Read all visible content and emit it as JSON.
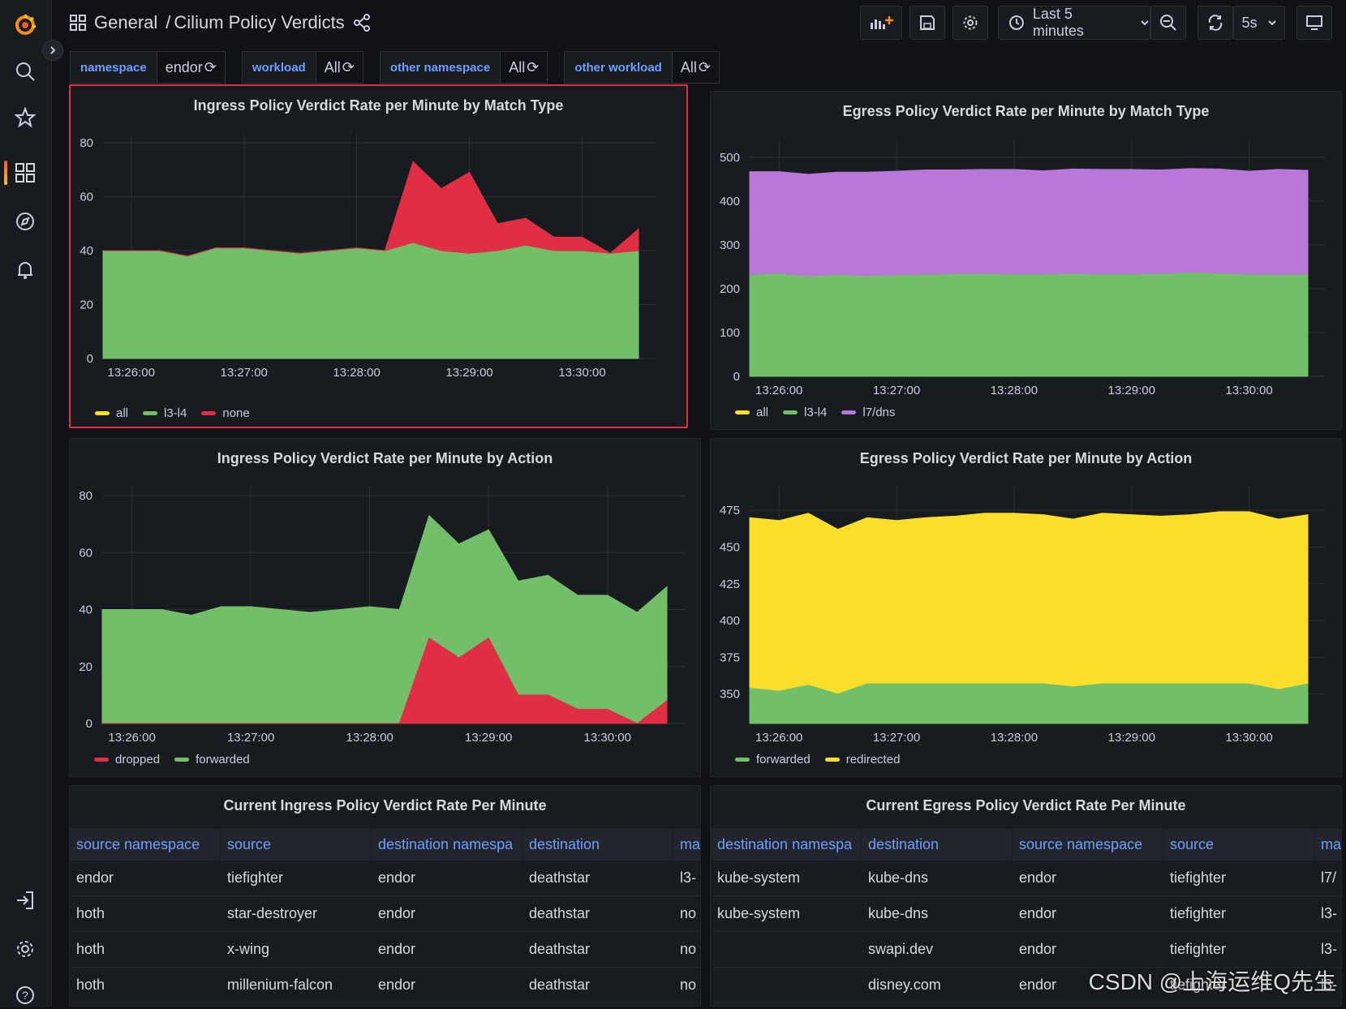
{
  "breadcrumb": {
    "folder": "General",
    "separator": "/",
    "dashboard": "Cilium Policy Verdicts"
  },
  "toolbar": {
    "time_range": "Last 5 minutes",
    "refresh_interval": "5s"
  },
  "variables": [
    {
      "label": "namespace",
      "value": "endor"
    },
    {
      "label": "workload",
      "value": "All"
    },
    {
      "label": "other namespace",
      "value": "All"
    },
    {
      "label": "other workload",
      "value": "All"
    }
  ],
  "colors": {
    "green": "#73bf69",
    "red": "#e02f44",
    "yellow": "#fade2a",
    "purple": "#b877d9",
    "accent": "#6e9fff"
  },
  "panels": {
    "ingress_match": {
      "title": "Ingress Policy Verdict Rate per Minute by Match Type"
    },
    "egress_match": {
      "title": "Egress Policy Verdict Rate per Minute by Match Type"
    },
    "ingress_action": {
      "title": "Ingress Policy Verdict Rate per Minute by Action"
    },
    "egress_action": {
      "title": "Egress Policy Verdict Rate per Minute by Action"
    },
    "ingress_table": {
      "title": "Current Ingress Policy Verdict Rate Per Minute"
    },
    "egress_table": {
      "title": "Current Egress Policy Verdict Rate Per Minute"
    }
  },
  "chart_data": [
    {
      "id": "ingress_match",
      "type": "area",
      "stacked": true,
      "title": "Ingress Policy Verdict Rate per Minute by Match Type",
      "x": [
        "13:25:45",
        "13:26:00",
        "13:26:15",
        "13:26:30",
        "13:26:45",
        "13:27:00",
        "13:27:15",
        "13:27:30",
        "13:27:45",
        "13:28:00",
        "13:28:15",
        "13:28:30",
        "13:28:45",
        "13:29:00",
        "13:29:15",
        "13:29:30",
        "13:29:45",
        "13:30:00",
        "13:30:15",
        "13:30:30"
      ],
      "xticks": [
        "13:26:00",
        "13:27:00",
        "13:28:00",
        "13:29:00",
        "13:30:00"
      ],
      "yticks": [
        0,
        20,
        40,
        60,
        80
      ],
      "ylim": [
        0,
        80
      ],
      "series": [
        {
          "name": "all",
          "color": "#fade2a",
          "values": [
            0,
            0,
            0,
            0,
            0,
            0,
            0,
            0,
            0,
            0,
            0,
            0,
            0,
            0,
            0,
            0,
            0,
            0,
            0,
            0
          ]
        },
        {
          "name": "l3-l4",
          "color": "#73bf69",
          "values": [
            40,
            40,
            40,
            38,
            41,
            41,
            40,
            39,
            40,
            41,
            40,
            43,
            40,
            39,
            40,
            42,
            40,
            40,
            39,
            40
          ]
        },
        {
          "name": "none",
          "color": "#e02f44",
          "values": [
            0,
            0,
            0,
            0,
            0,
            0,
            0,
            0,
            0,
            0,
            0,
            30,
            23,
            30,
            10,
            10,
            5,
            5,
            0,
            8
          ]
        }
      ],
      "legend": [
        "all",
        "l3-l4",
        "none"
      ]
    },
    {
      "id": "egress_match",
      "type": "area",
      "stacked": true,
      "title": "Egress Policy Verdict Rate per Minute by Match Type",
      "x": [
        "13:25:45",
        "13:26:00",
        "13:26:15",
        "13:26:30",
        "13:26:45",
        "13:27:00",
        "13:27:15",
        "13:27:30",
        "13:27:45",
        "13:28:00",
        "13:28:15",
        "13:28:30",
        "13:28:45",
        "13:29:00",
        "13:29:15",
        "13:29:30",
        "13:29:45",
        "13:30:00",
        "13:30:15",
        "13:30:30"
      ],
      "xticks": [
        "13:26:00",
        "13:27:00",
        "13:28:00",
        "13:29:00",
        "13:30:00"
      ],
      "yticks": [
        0,
        100,
        200,
        300,
        400,
        500
      ],
      "ylim": [
        0,
        520
      ],
      "series": [
        {
          "name": "all",
          "color": "#fade2a",
          "values": [
            0,
            0,
            0,
            0,
            0,
            0,
            0,
            0,
            0,
            0,
            0,
            0,
            0,
            0,
            0,
            0,
            0,
            0,
            0,
            0
          ]
        },
        {
          "name": "l3-l4",
          "color": "#73bf69",
          "values": [
            233,
            236,
            229,
            233,
            230,
            232,
            233,
            235,
            235,
            234,
            234,
            235,
            234,
            234,
            235,
            238,
            236,
            234,
            233,
            234
          ]
        },
        {
          "name": "l7/dns",
          "color": "#b877d9",
          "values": [
            234,
            231,
            232,
            233,
            236,
            236,
            238,
            236,
            237,
            238,
            235,
            238,
            238,
            238,
            236,
            236,
            237,
            234,
            239,
            236
          ]
        }
      ],
      "legend": [
        "all",
        "l3-l4",
        "l7/dns"
      ]
    },
    {
      "id": "ingress_action",
      "type": "area",
      "stacked": false,
      "title": "Ingress Policy Verdict Rate per Minute by Action",
      "x": [
        "13:25:45",
        "13:26:00",
        "13:26:15",
        "13:26:30",
        "13:26:45",
        "13:27:00",
        "13:27:15",
        "13:27:30",
        "13:27:45",
        "13:28:00",
        "13:28:15",
        "13:28:30",
        "13:28:45",
        "13:29:00",
        "13:29:15",
        "13:29:30",
        "13:29:45",
        "13:30:00",
        "13:30:15",
        "13:30:30"
      ],
      "xticks": [
        "13:26:00",
        "13:27:00",
        "13:28:00",
        "13:29:00",
        "13:30:00"
      ],
      "yticks": [
        0,
        20,
        40,
        60,
        80
      ],
      "ylim": [
        0,
        80
      ],
      "series": [
        {
          "name": "forwarded",
          "color": "#73bf69",
          "values": [
            40,
            40,
            40,
            38,
            41,
            41,
            40,
            39,
            40,
            41,
            40,
            73,
            63,
            68,
            50,
            52,
            45,
            45,
            39,
            48
          ]
        },
        {
          "name": "dropped",
          "color": "#e02f44",
          "values": [
            0,
            0,
            0,
            0,
            0,
            0,
            0,
            0,
            0,
            0,
            0,
            30,
            23,
            30,
            10,
            10,
            5,
            5,
            0,
            8
          ]
        }
      ],
      "legend": [
        "dropped",
        "forwarded"
      ]
    },
    {
      "id": "egress_action",
      "type": "area",
      "stacked": false,
      "title": "Egress Policy Verdict Rate per Minute by Action",
      "x": [
        "13:25:45",
        "13:26:00",
        "13:26:15",
        "13:26:30",
        "13:26:45",
        "13:27:00",
        "13:27:15",
        "13:27:30",
        "13:27:45",
        "13:28:00",
        "13:28:15",
        "13:28:30",
        "13:28:45",
        "13:29:00",
        "13:29:15",
        "13:29:30",
        "13:29:45",
        "13:30:00",
        "13:30:15",
        "13:30:30"
      ],
      "xticks": [
        "13:26:00",
        "13:27:00",
        "13:28:00",
        "13:29:00",
        "13:30:00"
      ],
      "yticks": [
        350,
        375,
        400,
        425,
        450,
        475
      ],
      "ylim": [
        330,
        485
      ],
      "series": [
        {
          "name": "redirected",
          "color": "#fade2a",
          "values": [
            470,
            468,
            473,
            462,
            470,
            468,
            470,
            471,
            473,
            473,
            472,
            469,
            473,
            472,
            471,
            472,
            474,
            474,
            469,
            472
          ]
        },
        {
          "name": "forwarded",
          "color": "#73bf69",
          "values": [
            354,
            352,
            356,
            350,
            357,
            357,
            357,
            357,
            357,
            357,
            357,
            355,
            357,
            357,
            357,
            357,
            357,
            357,
            353,
            357
          ]
        }
      ],
      "legend": [
        "forwarded",
        "redirected"
      ]
    }
  ],
  "ingress_table": {
    "columns": [
      "source namespace",
      "source",
      "destination namespa",
      "destination",
      "ma"
    ],
    "rows": [
      [
        "endor",
        "tiefighter",
        "endor",
        "deathstar",
        "l3-"
      ],
      [
        "hoth",
        "star-destroyer",
        "endor",
        "deathstar",
        "no"
      ],
      [
        "hoth",
        "x-wing",
        "endor",
        "deathstar",
        "no"
      ],
      [
        "hoth",
        "millenium-falcon",
        "endor",
        "deathstar",
        "no"
      ]
    ]
  },
  "egress_table": {
    "columns": [
      "destination namespa",
      "destination",
      "source namespace",
      "source",
      "ma"
    ],
    "rows": [
      [
        "kube-system",
        "kube-dns",
        "endor",
        "tiefighter",
        "l7/"
      ],
      [
        "kube-system",
        "kube-dns",
        "endor",
        "tiefighter",
        "l3-"
      ],
      [
        "",
        "swapi.dev",
        "endor",
        "tiefighter",
        "l3-"
      ],
      [
        "",
        "disney.com",
        "endor",
        "tiefighter",
        "l3-"
      ]
    ]
  },
  "watermark": "CSDN @上海运维Q先生"
}
